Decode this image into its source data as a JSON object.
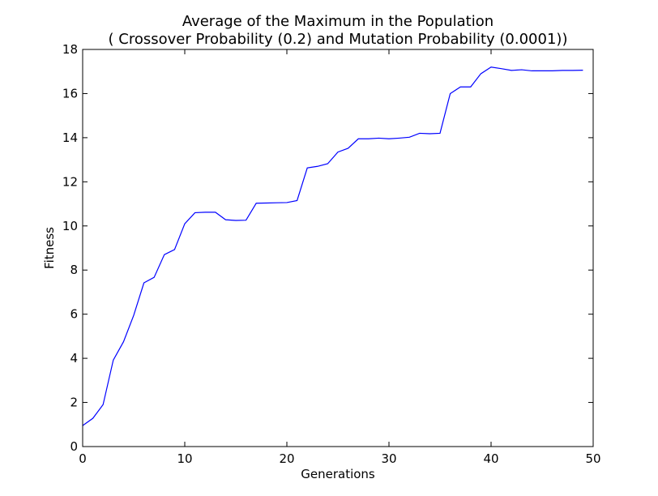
{
  "chart_data": {
    "type": "line",
    "title": "Average of the Maximum in the Population",
    "subtitle": "( Crossover Probability (0.2) and Mutation Probability (0.0001))",
    "xlabel": "Generations",
    "ylabel": "Fitness",
    "xlim": [
      0,
      50
    ],
    "ylim": [
      0,
      18
    ],
    "x_ticks": [
      0,
      10,
      20,
      30,
      40,
      50
    ],
    "y_ticks": [
      0,
      2,
      4,
      6,
      8,
      10,
      12,
      14,
      16,
      18
    ],
    "grid": false,
    "legend": "none",
    "series": [
      {
        "color": "#0000ff",
        "x": [
          0,
          1,
          2,
          3,
          4,
          5,
          6,
          7,
          8,
          9,
          10,
          11,
          12,
          13,
          14,
          15,
          16,
          17,
          18,
          19,
          20,
          21,
          22,
          23,
          24,
          25,
          26,
          27,
          28,
          29,
          30,
          31,
          32,
          33,
          34,
          35,
          36,
          37,
          38,
          39,
          40,
          41,
          42,
          43,
          44,
          45,
          46,
          47,
          48,
          49
        ],
        "y": [
          0.95,
          1.28,
          1.9,
          3.92,
          4.75,
          5.95,
          7.42,
          7.67,
          8.7,
          8.93,
          10.1,
          10.6,
          10.62,
          10.62,
          10.28,
          10.25,
          10.26,
          11.03,
          11.04,
          11.05,
          11.06,
          11.15,
          12.63,
          12.7,
          12.82,
          13.35,
          13.52,
          13.95,
          13.95,
          13.98,
          13.95,
          13.98,
          14.02,
          14.2,
          14.18,
          14.2,
          16.0,
          16.3,
          16.3,
          16.9,
          17.2,
          17.13,
          17.05,
          17.08,
          17.03,
          17.03,
          17.03,
          17.05,
          17.05,
          17.06
        ]
      }
    ]
  }
}
